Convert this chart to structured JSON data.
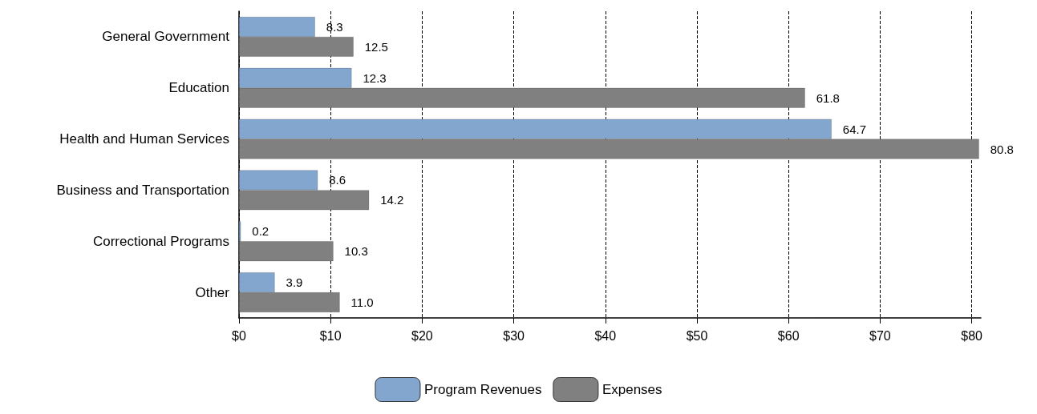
{
  "chart_data": {
    "type": "bar",
    "orientation": "horizontal",
    "categories": [
      "General Government",
      "Education",
      "Health and Human Services",
      "Business and Transportation",
      "Correctional Programs",
      "Other"
    ],
    "series": [
      {
        "name": "Program Revenues",
        "color": "#82a6cd",
        "values": [
          8.3,
          12.3,
          64.7,
          8.6,
          0.2,
          3.9
        ],
        "value_labels": [
          "8.3",
          "12.3",
          "64.7",
          "8.6",
          "0.2",
          "3.9"
        ]
      },
      {
        "name": "Expenses",
        "color": "#808080",
        "values": [
          12.5,
          61.8,
          80.8,
          14.2,
          10.3,
          11.0
        ],
        "value_labels": [
          "12.5",
          "61.8",
          "80.8",
          "14.2",
          "10.3",
          "11.0"
        ]
      }
    ],
    "xlim": [
      0,
      81
    ],
    "xticks": [
      {
        "value": 0,
        "label": "$0"
      },
      {
        "value": 10,
        "label": "$10"
      },
      {
        "value": 20,
        "label": "$20"
      },
      {
        "value": 30,
        "label": "$30"
      },
      {
        "value": 40,
        "label": "$40"
      },
      {
        "value": 50,
        "label": "$50"
      },
      {
        "value": 60,
        "label": "$60"
      },
      {
        "value": 70,
        "label": "$70"
      },
      {
        "value": 80,
        "label": "$80"
      }
    ],
    "grid": "x",
    "legend": "bottom"
  }
}
